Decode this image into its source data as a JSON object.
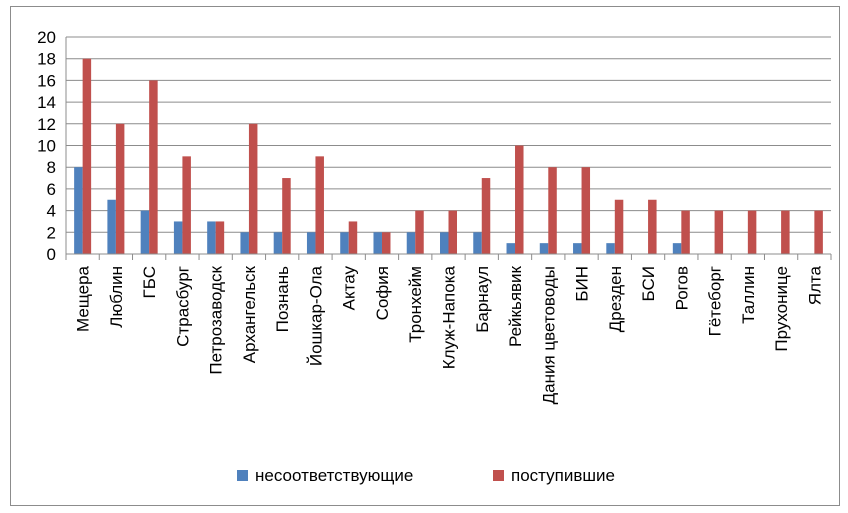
{
  "chart_data": {
    "type": "bar",
    "categories": [
      "Мещера",
      "Люблин",
      "ГБС",
      "Страсбург",
      "Петрозаводск",
      "Архангельск",
      "Познань",
      "Йошкар-Ола",
      "Актау",
      "София",
      "Тронхейм",
      "Клуж-Напока",
      "Барнаул",
      "Рейкьявик",
      "Дания цветоводы",
      "БИН",
      "Дрезден",
      "БСИ",
      "Рогов",
      "Гётеборг",
      "Таллин",
      "Прухонице",
      "Ялта"
    ],
    "series": [
      {
        "name": "несоответствующие",
        "color": "#4f81bd",
        "values": [
          8,
          5,
          4,
          3,
          3,
          2,
          2,
          2,
          2,
          2,
          2,
          2,
          2,
          1,
          1,
          1,
          1,
          0,
          1,
          0,
          0,
          0,
          0
        ]
      },
      {
        "name": "поступившие",
        "color": "#c0504d",
        "values": [
          18,
          12,
          16,
          9,
          3,
          12,
          7,
          9,
          3,
          2,
          4,
          4,
          7,
          10,
          8,
          8,
          5,
          5,
          4,
          4,
          4,
          4,
          4
        ]
      }
    ],
    "ylim": [
      0,
      20
    ],
    "yticks": [
      0,
      2,
      4,
      6,
      8,
      10,
      12,
      14,
      16,
      18,
      20
    ],
    "grid": true,
    "legend_position": "bottom"
  }
}
